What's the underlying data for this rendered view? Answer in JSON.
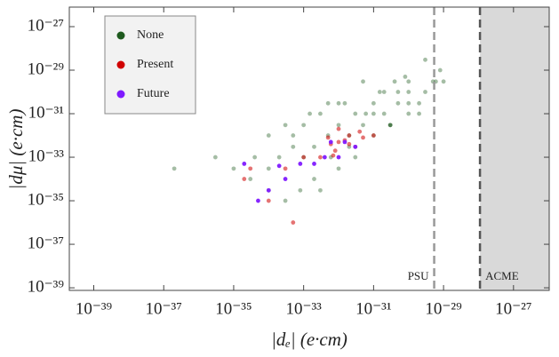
{
  "chart_data": {
    "type": "scatter",
    "log_x": true,
    "log_y": true,
    "x_label": "|dₑ| (e·cm)",
    "y_label": "|dμ| (e·cm)",
    "xlim": [
      2e-40,
      1.05e-26
    ],
    "ylim": [
      7.6e-40,
      7.9e-27
    ],
    "xticks": [
      {
        "value": 1e-39,
        "label": "10⁻³⁹"
      },
      {
        "value": 1e-37,
        "label": "10⁻³⁷"
      },
      {
        "value": 1e-35,
        "label": "10⁻³⁵"
      },
      {
        "value": 1e-33,
        "label": "10⁻³³"
      },
      {
        "value": 1e-31,
        "label": "10⁻³¹"
      },
      {
        "value": 1e-29,
        "label": "10⁻²⁹"
      },
      {
        "value": 1e-27,
        "label": "10⁻²⁷"
      }
    ],
    "yticks": [
      {
        "value": 1e-39,
        "label": "10⁻³⁹"
      },
      {
        "value": 1e-37,
        "label": "10⁻³⁷"
      },
      {
        "value": 1e-35,
        "label": "10⁻³⁵"
      },
      {
        "value": 1e-33,
        "label": "10⁻³³"
      },
      {
        "value": 1e-31,
        "label": "10⁻³¹"
      },
      {
        "value": 1e-29,
        "label": "10⁻²⁹"
      },
      {
        "value": 1e-27,
        "label": "10⁻²⁷"
      }
    ],
    "legend": "upper left",
    "vlines": [
      {
        "label": "PSU",
        "value": 5.4e-30,
        "color": "#999999",
        "shade": false
      },
      {
        "label": "ACME",
        "value": 1.1e-28,
        "color": "#555555",
        "shade": true
      }
    ],
    "series": [
      {
        "name": "None",
        "color": "#1e5a1e",
        "x": [
          1e-30,
          1e-30,
          3e-30,
          5e-31,
          2e-31,
          8e-31,
          3e-31,
          1e-31,
          5e-32,
          2e-32,
          1e-32,
          5e-33,
          2e-33,
          1e-33,
          5e-34,
          2e-34,
          1e-34,
          3e-35,
          1e-35,
          3e-36,
          2e-37,
          5e-30,
          8e-30,
          2e-30,
          1e-29,
          5e-31,
          1e-31,
          3e-32,
          1e-32,
          3e-33,
          1e-33,
          3e-34,
          1e-34,
          3e-31,
          1e-30,
          2e-31,
          6e-32,
          2e-32,
          6e-33,
          2e-33,
          8e-34,
          3e-34,
          1e-34,
          4e-35,
          3e-30,
          4e-31,
          1.5e-31,
          5e-32,
          1.5e-32,
          5e-33,
          1.5e-33,
          5e-34,
          2e-30,
          6e-30,
          1e-30,
          3e-31,
          1e-31,
          3e-32,
          1e-32,
          3e-33
        ],
        "values": [
          1e-30,
          3e-30,
          1e-30,
          3e-31,
          1e-31,
          5e-30,
          3e-32,
          1e-31,
          3e-32,
          1e-32,
          3e-32,
          1e-32,
          3e-33,
          1e-33,
          3e-33,
          1e-33,
          3e-34,
          1e-34,
          3e-34,
          1e-33,
          3e-34,
          3e-30,
          1e-29,
          3e-31,
          3e-30,
          1e-30,
          3e-31,
          1e-31,
          3e-31,
          1e-31,
          3e-32,
          3e-32,
          1e-32,
          3e-32,
          1e-31,
          1e-30,
          1e-31,
          3e-33,
          1e-33,
          1e-34,
          3e-35,
          1e-35,
          3e-35,
          1e-33,
          3e-29,
          3e-30,
          1e-30,
          3e-30,
          3e-31,
          3e-31,
          1e-31,
          1e-32,
          1e-31,
          3e-30,
          3e-31,
          3e-32,
          1e-32,
          1e-33,
          3e-34,
          3e-35
        ]
      },
      {
        "name": "Present",
        "color": "#d00000",
        "x": [
          1e-32,
          3e-32,
          5e-33,
          2e-32,
          8e-33,
          1.5e-32,
          4e-32,
          6e-33,
          3e-33,
          1e-32,
          2e-32,
          5e-32,
          1e-33,
          3e-34,
          1e-34,
          3e-35,
          2e-35,
          5e-34,
          1e-31,
          7e-33
        ],
        "values": [
          5e-33,
          3e-33,
          8e-33,
          1e-32,
          2e-33,
          6e-33,
          1.5e-32,
          4e-33,
          1e-33,
          2e-32,
          4e-33,
          8e-33,
          1e-33,
          3e-34,
          1e-35,
          3e-34,
          1e-34,
          1e-36,
          1e-32,
          1.2e-33
        ]
      },
      {
        "name": "Future",
        "color": "#7f1aff",
        "x": [
          2e-35,
          3e-34,
          8e-34,
          5e-35,
          1e-34,
          6e-33,
          1e-32,
          3e-32,
          1.5e-32,
          4e-33,
          2e-33,
          2e-34
        ],
        "values": [
          5e-34,
          1e-34,
          5e-34,
          1e-35,
          3e-35,
          5e-33,
          1e-33,
          3e-33,
          5e-33,
          1e-33,
          5e-34,
          4e-34
        ]
      }
    ]
  }
}
